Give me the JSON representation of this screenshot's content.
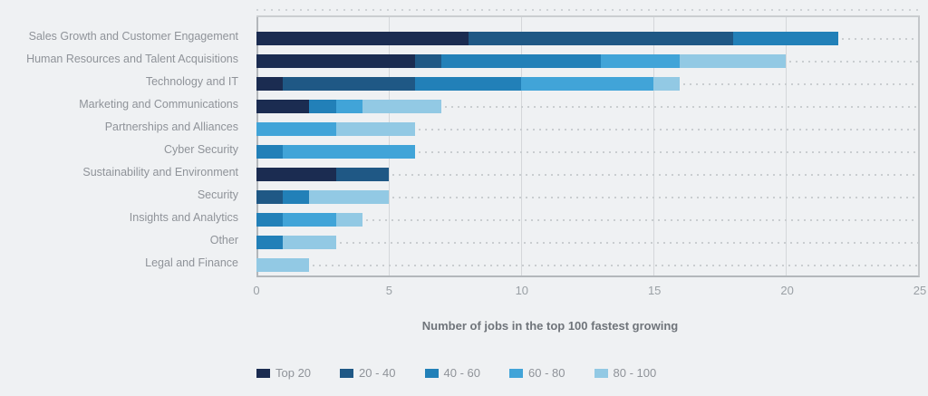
{
  "chart_data": {
    "type": "bar",
    "orientation": "horizontal",
    "stacked": true,
    "title": "",
    "xlabel": "Number of jobs in the top 100 fastest growing",
    "ylabel": "",
    "xlim": [
      0,
      25
    ],
    "x_ticks": [
      0,
      5,
      10,
      15,
      20,
      25
    ],
    "grid": "vertical",
    "legend_position": "bottom",
    "categories": [
      "Sales Growth and Customer Engagement",
      "Human Resources and Talent Acquisitions",
      "Technology and IT",
      "Marketing and Communications",
      "Partnerships and Alliances",
      "Cyber Security",
      "Sustainability and Environment",
      "Security",
      "Insights and Analytics",
      "Other",
      "Legal and Finance"
    ],
    "series": [
      {
        "name": "Top 20",
        "color": "#1b2c51",
        "values": [
          8,
          6,
          1,
          2,
          0,
          0,
          3,
          0,
          0,
          0,
          0
        ]
      },
      {
        "name": "20 - 40",
        "color": "#1f5885",
        "values": [
          10,
          1,
          5,
          0,
          0,
          0,
          2,
          1,
          0,
          0,
          0
        ]
      },
      {
        "name": "40 - 60",
        "color": "#2280b8",
        "values": [
          4,
          6,
          4,
          1,
          0,
          1,
          0,
          1,
          1,
          1,
          0
        ]
      },
      {
        "name": "60 - 80",
        "color": "#41a4d8",
        "values": [
          0,
          3,
          5,
          1,
          3,
          5,
          0,
          0,
          2,
          0,
          0
        ]
      },
      {
        "name": "80 - 100",
        "color": "#92c9e4",
        "values": [
          0,
          4,
          1,
          3,
          3,
          0,
          0,
          3,
          1,
          2,
          2
        ]
      }
    ],
    "totals": [
      22,
      20,
      16,
      7,
      6,
      6,
      5,
      5,
      4,
      3,
      2
    ],
    "colors": {
      "background": "#eff1f3",
      "gridline": "#d4d7da",
      "axis_line": "#b3b7bb",
      "frame_border": "#c4c7ca",
      "category_label": "#8f9399",
      "tick_label": "#9aa0a5",
      "axis_title": "#6f747a",
      "leader_dots": "#c9cdd0"
    }
  }
}
